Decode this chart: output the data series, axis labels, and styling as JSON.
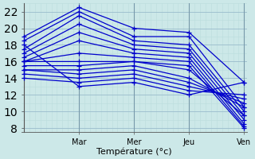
{
  "xlabel": "Température (°c)",
  "background_color": "#cce8e8",
  "line_color": "#0000cc",
  "grid_major_color": "#99bbcc",
  "grid_minor_color": "#bbdddd",
  "ylim": [
    7.5,
    23.0
  ],
  "yticks": [
    8,
    10,
    12,
    14,
    16,
    18,
    20,
    22
  ],
  "xlim": [
    -0.05,
    4.05
  ],
  "x_tick_positions": [
    1,
    2,
    3,
    4
  ],
  "x_tick_labels": [
    "Mar",
    "Mer",
    "Jeu",
    "Ven"
  ],
  "series": [
    [
      19.0,
      22.5,
      20.0,
      19.5,
      13.5
    ],
    [
      18.5,
      22.0,
      19.0,
      19.0,
      10.5
    ],
    [
      17.5,
      21.5,
      18.5,
      18.0,
      10.0
    ],
    [
      17.0,
      20.5,
      18.0,
      17.5,
      9.5
    ],
    [
      16.5,
      19.5,
      17.5,
      17.0,
      9.0
    ],
    [
      16.0,
      18.5,
      17.0,
      16.5,
      8.5
    ],
    [
      16.0,
      17.0,
      16.5,
      16.0,
      8.2
    ],
    [
      16.0,
      16.0,
      16.0,
      15.5,
      8.0
    ],
    [
      15.5,
      15.5,
      16.0,
      15.0,
      9.5
    ],
    [
      15.0,
      15.0,
      15.5,
      14.0,
      10.5
    ],
    [
      15.0,
      14.5,
      15.0,
      13.5,
      11.0
    ],
    [
      14.5,
      14.0,
      14.5,
      13.0,
      11.5
    ],
    [
      14.0,
      13.5,
      14.0,
      12.5,
      12.0
    ],
    [
      18.0,
      13.0,
      13.5,
      12.0,
      13.5
    ]
  ],
  "x_positions": [
    0,
    1,
    2,
    3,
    4
  ]
}
